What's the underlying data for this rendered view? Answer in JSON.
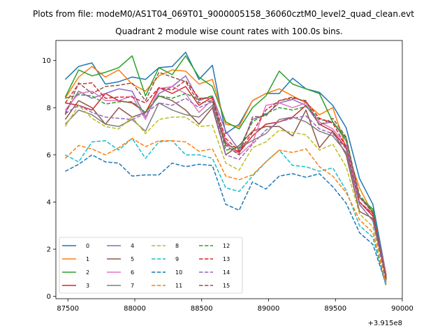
{
  "suptitle": "Plots from file: modeM0/AS1T04_069T01_9000005158_36060cztM0_level2_quad_clean.evt",
  "chart_data": {
    "type": "line",
    "title": "Quadrant 2 module wise count rates with 100.0s bins.",
    "xlabel": "",
    "ylabel": "",
    "x_offset_label": "+3.915e8",
    "xlim": [
      87410,
      90000
    ],
    "ylim": [
      -0.1,
      10.85
    ],
    "xticks": [
      87500,
      88000,
      88500,
      89000,
      89500,
      90000
    ],
    "yticks": [
      0,
      2,
      4,
      6,
      8,
      10
    ],
    "grid": false,
    "legend": {
      "placement": "lower-left",
      "columns": 4
    },
    "x": [
      87480,
      87580,
      87680,
      87780,
      87880,
      87980,
      88080,
      88180,
      88280,
      88380,
      88480,
      88580,
      88680,
      88780,
      88880,
      88980,
      89080,
      89180,
      89280,
      89380,
      89480,
      89580,
      89680,
      89780,
      89880
    ],
    "series": [
      {
        "name": "0",
        "color": "#1f77b4",
        "dash": "solid",
        "values": [
          9.2,
          9.75,
          9.9,
          9.0,
          9.1,
          9.3,
          9.2,
          9.7,
          9.75,
          10.35,
          9.2,
          9.8,
          6.9,
          7.3,
          8.3,
          8.6,
          8.6,
          9.25,
          8.8,
          8.65,
          8.1,
          7.15,
          5.0,
          3.9,
          0.9
        ]
      },
      {
        "name": "1",
        "color": "#ff7f0e",
        "dash": "solid",
        "values": [
          8.4,
          9.3,
          9.75,
          9.3,
          9.6,
          9.0,
          8.7,
          9.35,
          9.6,
          9.55,
          9.0,
          9.2,
          7.3,
          7.2,
          8.3,
          8.6,
          8.8,
          8.5,
          8.2,
          7.7,
          8.0,
          6.3,
          4.6,
          3.5,
          0.9
        ]
      },
      {
        "name": "2",
        "color": "#2ca02c",
        "dash": "solid",
        "values": [
          8.45,
          9.6,
          9.35,
          9.5,
          9.7,
          10.2,
          8.5,
          9.7,
          9.4,
          10.2,
          9.3,
          8.9,
          7.4,
          7.1,
          8.0,
          8.5,
          9.55,
          9.0,
          8.8,
          8.6,
          7.4,
          6.7,
          4.2,
          3.7,
          0.7
        ]
      },
      {
        "name": "3",
        "color": "#d62728",
        "dash": "solid",
        "values": [
          8.2,
          8.1,
          7.9,
          8.6,
          8.3,
          8.2,
          7.8,
          8.85,
          8.6,
          8.9,
          8.1,
          8.45,
          6.5,
          6.1,
          6.8,
          7.3,
          7.4,
          7.6,
          8.1,
          7.3,
          7.0,
          6.3,
          4.0,
          3.4,
          0.85
        ]
      },
      {
        "name": "4",
        "color": "#9467bd",
        "dash": "solid",
        "values": [
          7.8,
          8.7,
          8.4,
          8.6,
          8.8,
          8.7,
          7.6,
          8.6,
          8.9,
          9.35,
          8.3,
          8.5,
          7.0,
          6.2,
          7.5,
          7.7,
          8.2,
          8.35,
          8.1,
          7.3,
          7.4,
          6.6,
          4.2,
          3.6,
          0.85
        ]
      },
      {
        "name": "5",
        "color": "#8c564b",
        "dash": "solid",
        "values": [
          7.5,
          8.3,
          8.0,
          7.3,
          8.0,
          7.6,
          7.8,
          8.5,
          8.3,
          7.9,
          7.3,
          8.0,
          6.0,
          6.4,
          7.0,
          7.2,
          7.2,
          6.8,
          7.9,
          6.3,
          7.0,
          6.0,
          3.6,
          3.3,
          0.8
        ]
      },
      {
        "name": "6",
        "color": "#e377c2",
        "dash": "solid",
        "values": [
          7.9,
          8.6,
          8.7,
          8.3,
          8.3,
          8.5,
          7.5,
          8.8,
          8.9,
          8.6,
          7.8,
          8.35,
          6.6,
          6.0,
          6.5,
          8.1,
          8.2,
          8.0,
          8.2,
          7.4,
          7.1,
          6.4,
          4.0,
          3.5,
          0.85
        ]
      },
      {
        "name": "7",
        "color": "#7f7f7f",
        "dash": "solid",
        "values": [
          7.3,
          7.9,
          7.7,
          7.3,
          7.2,
          7.5,
          7.0,
          8.2,
          7.9,
          7.7,
          7.6,
          8.1,
          6.4,
          6.3,
          6.6,
          6.9,
          7.5,
          7.6,
          7.4,
          7.0,
          6.8,
          6.1,
          3.9,
          3.2,
          0.8
        ]
      },
      {
        "name": "8",
        "color": "#bcbd22",
        "dash": "dashed",
        "values": [
          7.2,
          8.1,
          7.55,
          7.2,
          7.1,
          7.6,
          6.9,
          7.5,
          7.6,
          7.6,
          7.2,
          7.25,
          5.65,
          5.35,
          6.3,
          6.55,
          7.05,
          6.95,
          6.85,
          6.2,
          6.45,
          5.5,
          3.5,
          2.95,
          0.6
        ]
      },
      {
        "name": "9",
        "color": "#17becf",
        "dash": "dashed",
        "values": [
          6.0,
          5.7,
          6.55,
          6.6,
          6.2,
          6.7,
          5.85,
          6.55,
          6.6,
          6.0,
          6.0,
          5.85,
          4.6,
          4.45,
          5.1,
          5.7,
          6.2,
          5.55,
          5.5,
          5.3,
          5.45,
          4.5,
          3.0,
          2.5,
          0.4
        ]
      },
      {
        "name": "10",
        "color": "#1f77b4",
        "dash": "dashed",
        "values": [
          5.3,
          5.6,
          6.0,
          5.7,
          5.65,
          5.1,
          5.15,
          5.15,
          5.65,
          5.5,
          5.6,
          5.55,
          3.9,
          3.65,
          4.85,
          4.55,
          5.1,
          5.2,
          5.05,
          5.2,
          4.65,
          3.95,
          2.7,
          2.2,
          0.5
        ]
      },
      {
        "name": "11",
        "color": "#ff7f0e",
        "dash": "dashed",
        "values": [
          5.85,
          6.4,
          6.25,
          6.0,
          6.3,
          6.7,
          6.35,
          6.6,
          6.6,
          6.55,
          6.15,
          6.25,
          5.1,
          4.95,
          5.15,
          5.7,
          6.2,
          6.1,
          6.25,
          5.5,
          5.1,
          4.4,
          3.25,
          2.7,
          0.5
        ]
      },
      {
        "name": "12",
        "color": "#2ca02c",
        "dash": "dashed",
        "values": [
          8.4,
          8.55,
          8.5,
          8.15,
          8.25,
          8.25,
          7.8,
          8.5,
          8.4,
          8.6,
          8.35,
          8.5,
          6.2,
          6.3,
          7.4,
          7.75,
          8.0,
          7.9,
          8.05,
          7.5,
          7.4,
          6.6,
          4.3,
          3.6,
          0.7
        ]
      },
      {
        "name": "13",
        "color": "#d62728",
        "dash": "dashed",
        "values": [
          8.2,
          9.0,
          9.05,
          8.4,
          8.45,
          8.45,
          8.2,
          8.85,
          8.75,
          9.15,
          8.4,
          8.4,
          6.7,
          6.15,
          6.95,
          7.9,
          8.3,
          8.45,
          8.25,
          7.55,
          7.35,
          6.35,
          4.0,
          3.5,
          0.75
        ]
      },
      {
        "name": "14",
        "color": "#9467bd",
        "dash": "dashed",
        "values": [
          7.75,
          8.1,
          7.8,
          7.6,
          7.55,
          7.5,
          7.75,
          8.2,
          8.1,
          8.4,
          8.0,
          8.25,
          6.0,
          5.8,
          6.45,
          7.05,
          7.4,
          7.55,
          7.65,
          7.1,
          6.9,
          6.25,
          3.9,
          3.2,
          0.65
        ]
      },
      {
        "name": "15",
        "color": "#8c564b",
        "dash": "dashed",
        "values": [
          7.7,
          9.05,
          8.6,
          8.9,
          8.95,
          9.05,
          8.3,
          9.5,
          9.3,
          9.1,
          8.2,
          8.3,
          6.4,
          6.0,
          7.6,
          7.65,
          8.3,
          8.4,
          8.3,
          7.25,
          7.55,
          6.75,
          4.2,
          3.55,
          0.7
        ]
      }
    ]
  }
}
